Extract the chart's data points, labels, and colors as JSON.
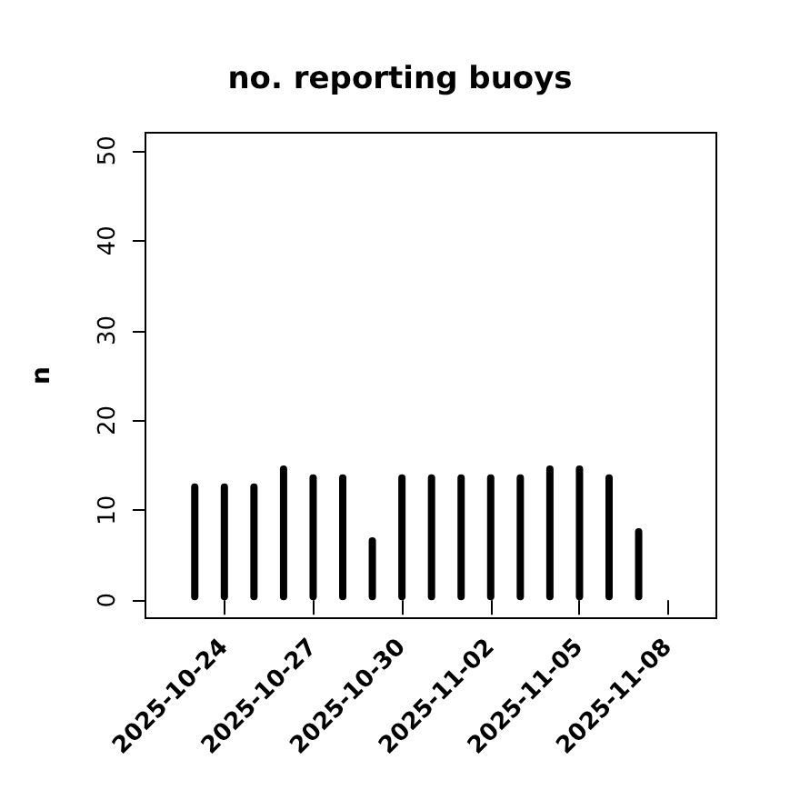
{
  "chart_data": {
    "type": "bar",
    "title": "no. reporting buoys",
    "ylabel": "n",
    "x": [
      "2025-10-23",
      "2025-10-24",
      "2025-10-25",
      "2025-10-26",
      "2025-10-27",
      "2025-10-28",
      "2025-10-29",
      "2025-10-30",
      "2025-10-31",
      "2025-11-01",
      "2025-11-02",
      "2025-11-03",
      "2025-11-04",
      "2025-11-05",
      "2025-11-06",
      "2025-11-07",
      "2025-11-08"
    ],
    "values": [
      13,
      13,
      13,
      15,
      14,
      14,
      7,
      14,
      14,
      14,
      14,
      14,
      15,
      15,
      14,
      8,
      0
    ],
    "color": "#000000",
    "xlim": [
      "2025-10-21T08:00",
      "2025-11-09T15:00"
    ],
    "xticks": [
      {
        "value": "2025-10-24",
        "label": "2025-10-24"
      },
      {
        "value": "2025-10-27",
        "label": "2025-10-27"
      },
      {
        "value": "2025-10-30",
        "label": "2025-10-30"
      },
      {
        "value": "2025-11-02",
        "label": "2025-11-02"
      },
      {
        "value": "2025-11-05",
        "label": "2025-11-05"
      },
      {
        "value": "2025-11-08",
        "label": "2025-11-08"
      }
    ],
    "ylim": [
      -2,
      52
    ],
    "yticks": [
      0,
      10,
      20,
      30,
      40,
      50
    ],
    "grid": false
  }
}
